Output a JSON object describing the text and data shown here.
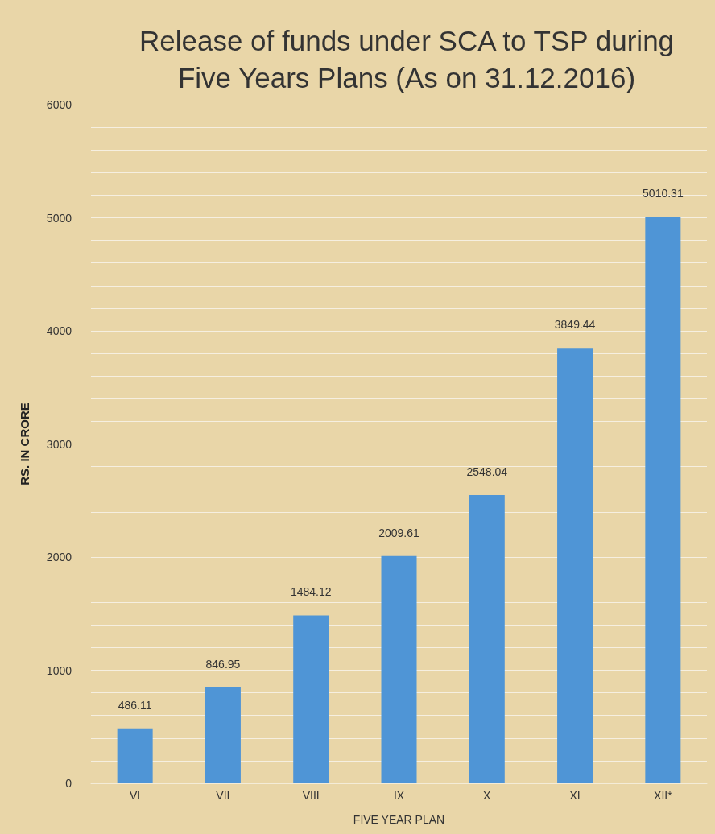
{
  "chart_data": {
    "type": "bar",
    "title": "Release of funds under SCA to TSP during\nFive Years Plans (As on 31.12.2016)",
    "xlabel": "FIVE YEAR PLAN",
    "ylabel": "RS. IN CRORE",
    "categories": [
      "VI",
      "VII",
      "VIII",
      "IX",
      "X",
      "XI",
      "XII*"
    ],
    "values": [
      486.11,
      846.95,
      1484.12,
      2009.61,
      2548.04,
      3849.44,
      5010.31
    ],
    "color": "#4f95d6",
    "data_labels": true,
    "grid": true,
    "ylim": [
      0,
      6000
    ],
    "yticks": [
      0,
      {
        "value": 200,
        "label": null
      },
      {
        "value": 400,
        "label": null
      },
      {
        "value": 600,
        "label": null
      },
      {
        "value": 800,
        "label": null
      },
      1000,
      {
        "value": 1200,
        "label": null
      },
      {
        "value": 1400,
        "label": null
      },
      {
        "value": 1600,
        "label": null
      },
      {
        "value": 1800,
        "label": null
      },
      2000,
      {
        "value": 2200,
        "label": null
      },
      {
        "value": 2400,
        "label": null
      },
      {
        "value": 2600,
        "label": null
      },
      {
        "value": 2800,
        "label": null
      },
      3000,
      {
        "value": 3200,
        "label": null
      },
      {
        "value": 3400,
        "label": null
      },
      {
        "value": 3600,
        "label": null
      },
      {
        "value": 3800,
        "label": null
      },
      4000,
      {
        "value": 4200,
        "label": null
      },
      {
        "value": 4400,
        "label": null
      },
      {
        "value": 4600,
        "label": null
      },
      {
        "value": 4800,
        "label": null
      },
      5000,
      {
        "value": 5200,
        "label": null
      },
      {
        "value": 5400,
        "label": null
      },
      {
        "value": 5600,
        "label": null
      },
      {
        "value": 5800,
        "label": null
      },
      6000
    ]
  }
}
